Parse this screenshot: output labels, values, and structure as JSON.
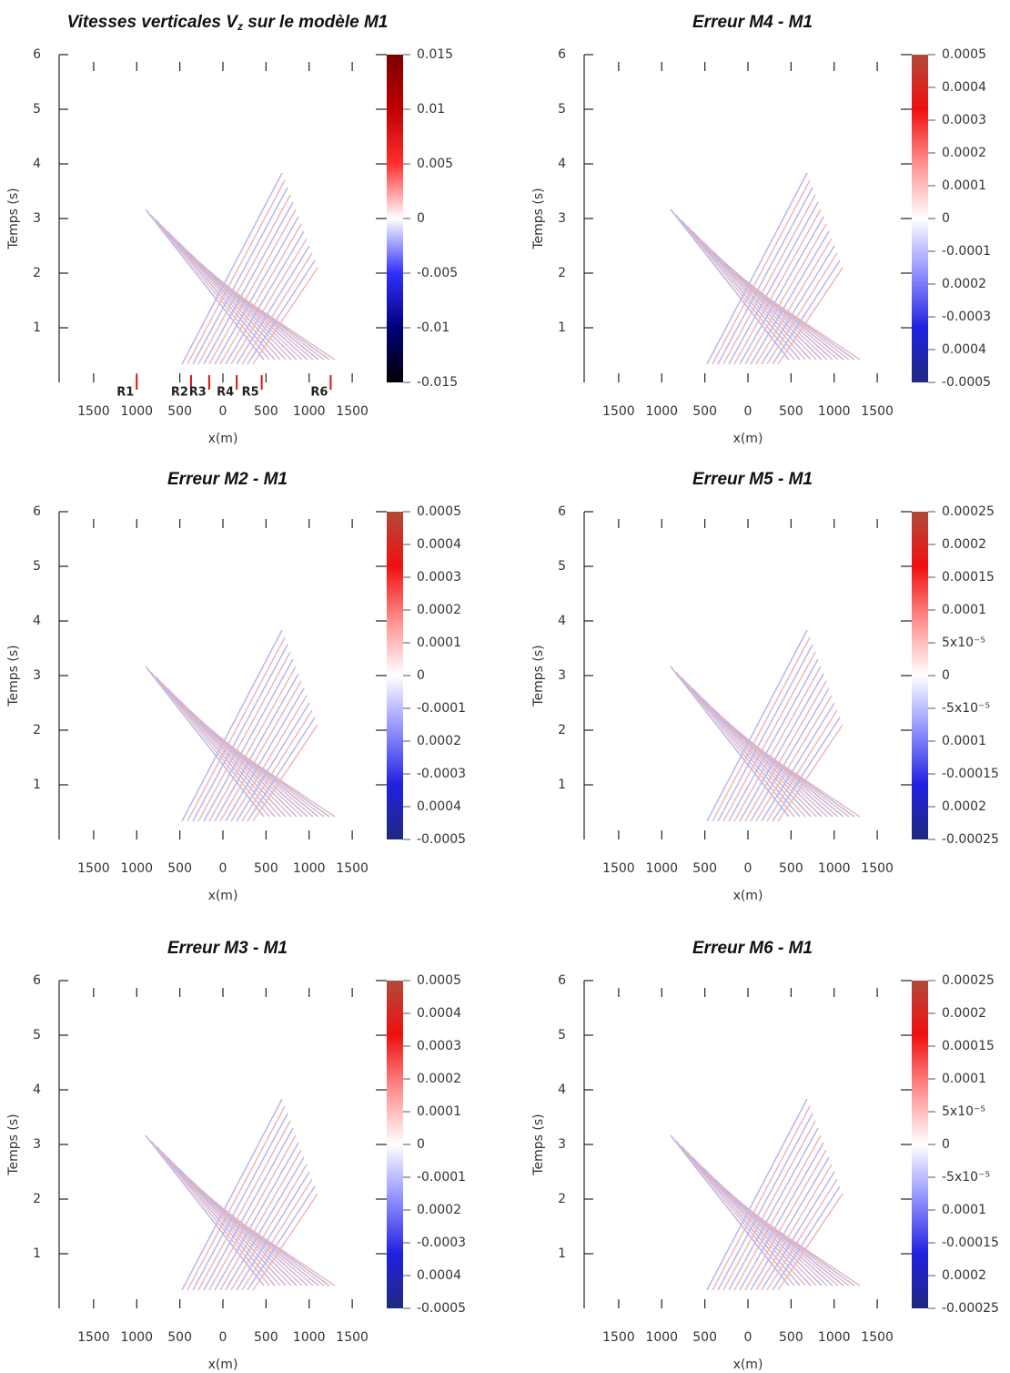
{
  "chart_data": [
    {
      "type": "heatmap",
      "title": {
        "text": "Vitesses verticales V",
        "sub": "z",
        "rest": " sur le modèle M1"
      },
      "xlabel": "x(m)",
      "ylabel": "Temps (s)",
      "xlim": [
        -1900,
        1900
      ],
      "ylim": [
        0,
        6
      ],
      "xticks": [
        {
          "value": -1500,
          "label": "1500"
        },
        {
          "value": -1000,
          "label": "1000"
        },
        {
          "value": -500,
          "label": "500"
        },
        0,
        500,
        1000,
        1500
      ],
      "yticks": [
        1,
        2,
        3,
        4,
        5,
        6
      ],
      "zlim": [
        -0.015,
        0.015
      ],
      "zticks": [
        -0.015,
        -0.01,
        -0.005,
        0,
        0.005,
        0.01,
        0.015
      ],
      "colorbar_colors": [
        "#000000",
        "#00007a",
        "#3030ff",
        "#ffffff",
        "#ff3030",
        "#c00000",
        "#7a0000"
      ],
      "receivers": [
        {
          "label": "R1",
          "x": -1000
        },
        {
          "label": "R2",
          "x": -370
        },
        {
          "label": "R3",
          "x": -160
        },
        {
          "label": "R4",
          "x": 160
        },
        {
          "label": "R5",
          "x": 450
        },
        {
          "label": "R6",
          "x": 1250
        }
      ],
      "receiver_color": "#e01010"
    },
    {
      "type": "heatmap",
      "title": {
        "text": "Erreur M4 - M1"
      },
      "xlabel": "x(m)",
      "ylabel": "Temps (s)",
      "xlim": [
        -1900,
        1900
      ],
      "ylim": [
        0,
        6
      ],
      "xticks": [
        {
          "value": -1500,
          "label": "1500"
        },
        {
          "value": -1000,
          "label": "1000"
        },
        {
          "value": -500,
          "label": "500"
        },
        0,
        500,
        1000,
        1500
      ],
      "yticks": [
        1,
        2,
        3,
        4,
        5,
        6
      ],
      "zlim": [
        -0.0005,
        0.0005
      ],
      "zticks": [
        -0.0005,
        {
          "value": -0.0004,
          "label": "0.0004"
        },
        -0.0003,
        {
          "value": -0.0002,
          "label": "0.0002"
        },
        -0.0001,
        0,
        0.0001,
        0.0002,
        0.0003,
        0.0004,
        0.0005
      ],
      "colorbar_colors": [
        "#1f2a80",
        "#2020e0",
        "#9090ff",
        "#ffffff",
        "#ff9090",
        "#f01010",
        "#b04a3a"
      ]
    },
    {
      "type": "heatmap",
      "title": {
        "text": "Erreur M2 - M1"
      },
      "xlabel": "x(m)",
      "ylabel": "Temps (s)",
      "xlim": [
        -1900,
        1900
      ],
      "ylim": [
        0,
        6
      ],
      "xticks": [
        {
          "value": -1500,
          "label": "1500"
        },
        {
          "value": -1000,
          "label": "1000"
        },
        {
          "value": -500,
          "label": "500"
        },
        0,
        500,
        1000,
        1500
      ],
      "yticks": [
        1,
        2,
        3,
        4,
        5,
        6
      ],
      "zlim": [
        -0.0005,
        0.0005
      ],
      "zticks": [
        -0.0005,
        {
          "value": -0.0004,
          "label": "0.0004"
        },
        -0.0003,
        {
          "value": -0.0002,
          "label": "0.0002"
        },
        -0.0001,
        0,
        0.0001,
        0.0002,
        0.0003,
        0.0004,
        0.0005
      ],
      "colorbar_colors": [
        "#1f2a80",
        "#2020e0",
        "#9090ff",
        "#ffffff",
        "#ff9090",
        "#f01010",
        "#b04a3a"
      ]
    },
    {
      "type": "heatmap",
      "title": {
        "text": "Erreur M5 - M1"
      },
      "xlabel": "x(m)",
      "ylabel": "Temps (s)",
      "xlim": [
        -1900,
        1900
      ],
      "ylim": [
        0,
        6
      ],
      "xticks": [
        {
          "value": -1500,
          "label": "1500"
        },
        {
          "value": -1000,
          "label": "1000"
        },
        {
          "value": -500,
          "label": "500"
        },
        0,
        500,
        1000,
        1500
      ],
      "yticks": [
        1,
        2,
        3,
        4,
        5,
        6
      ],
      "zlim": [
        -0.00025,
        0.00025
      ],
      "zticks": [
        -0.00025,
        {
          "value": -0.0002,
          "label": "0.0002"
        },
        -0.00015,
        {
          "value": -0.0001,
          "label": "0.0001"
        },
        {
          "value": -5e-05,
          "label": "-5x10⁻⁵"
        },
        0,
        {
          "value": 5e-05,
          "label": "5x10⁻⁵"
        },
        0.0001,
        0.00015,
        0.0002,
        0.00025
      ],
      "colorbar_colors": [
        "#1f2a80",
        "#2020e0",
        "#9090ff",
        "#ffffff",
        "#ff9090",
        "#f01010",
        "#b04a3a"
      ]
    },
    {
      "type": "heatmap",
      "title": {
        "text": "Erreur M3 - M1"
      },
      "xlabel": "x(m)",
      "ylabel": "Temps (s)",
      "xlim": [
        -1900,
        1900
      ],
      "ylim": [
        0,
        6
      ],
      "xticks": [
        {
          "value": -1500,
          "label": "1500"
        },
        {
          "value": -1000,
          "label": "1000"
        },
        {
          "value": -500,
          "label": "500"
        },
        0,
        500,
        1000,
        1500
      ],
      "yticks": [
        1,
        2,
        3,
        4,
        5,
        6
      ],
      "zlim": [
        -0.0005,
        0.0005
      ],
      "zticks": [
        -0.0005,
        {
          "value": -0.0004,
          "label": "0.0004"
        },
        -0.0003,
        {
          "value": -0.0002,
          "label": "0.0002"
        },
        -0.0001,
        0,
        0.0001,
        0.0002,
        0.0003,
        0.0004,
        0.0005
      ],
      "colorbar_colors": [
        "#1f2a80",
        "#2020e0",
        "#9090ff",
        "#ffffff",
        "#ff9090",
        "#f01010",
        "#b04a3a"
      ]
    },
    {
      "type": "heatmap",
      "title": {
        "text": "Erreur M6 - M1"
      },
      "xlabel": "x(m)",
      "ylabel": "Temps (s)",
      "xlim": [
        -1900,
        1900
      ],
      "ylim": [
        0,
        6
      ],
      "xticks": [
        {
          "value": -1500,
          "label": "1500"
        },
        {
          "value": -1000,
          "label": "1000"
        },
        {
          "value": -500,
          "label": "500"
        },
        0,
        500,
        1000,
        1500
      ],
      "yticks": [
        1,
        2,
        3,
        4,
        5,
        6
      ],
      "zlim": [
        -0.00025,
        0.00025
      ],
      "zticks": [
        -0.00025,
        {
          "value": -0.0002,
          "label": "0.0002"
        },
        -0.00015,
        {
          "value": -0.0001,
          "label": "0.0001"
        },
        {
          "value": -5e-05,
          "label": "-5x10⁻⁵"
        },
        0,
        {
          "value": 5e-05,
          "label": "5x10⁻⁵"
        },
        0.0001,
        0.00015,
        0.0002,
        0.00025
      ],
      "colorbar_colors": [
        "#1f2a80",
        "#2020e0",
        "#9090ff",
        "#ffffff",
        "#ff9090",
        "#f01010",
        "#b04a3a"
      ]
    }
  ]
}
